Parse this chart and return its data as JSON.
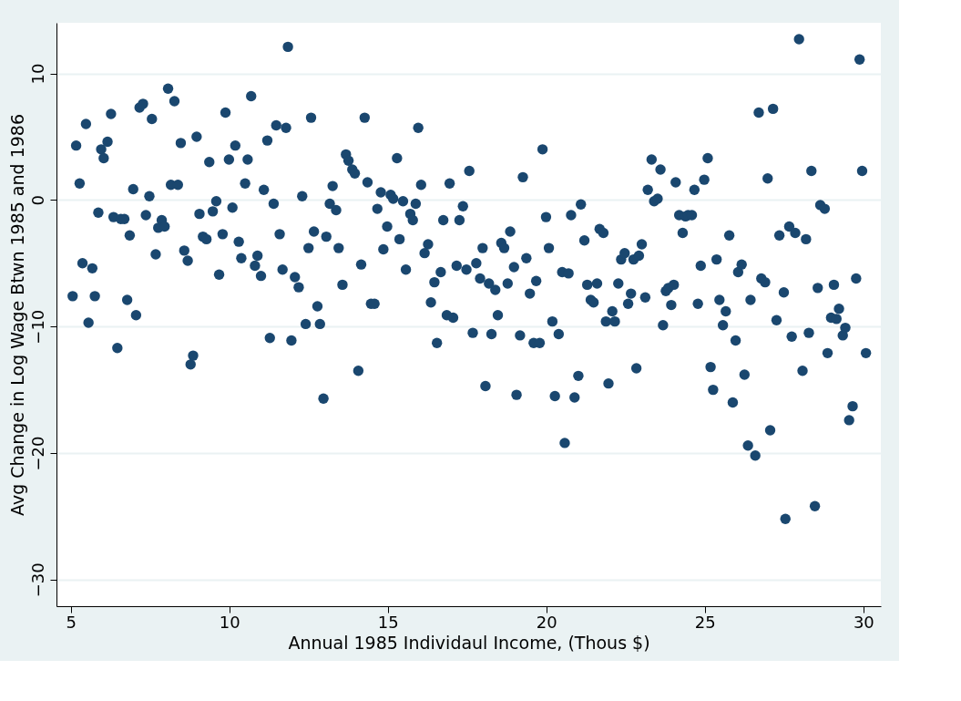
{
  "chart_data": {
    "type": "scatter",
    "xlabel": "Annual 1985 Individaul Income, (Thous $)",
    "ylabel": "Avg Change in Log Wage Btwn 1985 and 1986",
    "xlim": [
      4.55,
      30.55
    ],
    "ylim": [
      -32.1,
      14
    ],
    "xticks": [
      5,
      10,
      15,
      20,
      25,
      30
    ],
    "yticks": [
      -30,
      -20,
      -10,
      0,
      10
    ],
    "grid": "y",
    "marker": "circle",
    "series": [
      {
        "color": "#1a476f",
        "x": [
          5.06,
          5.17,
          5.28,
          5.37,
          5.48,
          5.56,
          5.68,
          5.76,
          5.87,
          5.96,
          6.04,
          6.16,
          6.27,
          6.35,
          6.47,
          6.58,
          6.69,
          6.78,
          6.86,
          6.97,
          7.06,
          7.17,
          7.28,
          7.37,
          7.48,
          7.56,
          7.68,
          7.76,
          7.87,
          7.96,
          8.07,
          8.16,
          8.27,
          8.38,
          8.47,
          8.58,
          8.69,
          8.78,
          8.86,
          8.97,
          9.06,
          9.17,
          9.28,
          9.37,
          9.48,
          9.59,
          9.68,
          9.79,
          9.88,
          9.99,
          10.1,
          10.19,
          10.3,
          10.38,
          10.5,
          10.58,
          10.69,
          10.81,
          10.89,
          11.0,
          11.09,
          11.2,
          11.28,
          11.4,
          11.48,
          11.59,
          11.68,
          11.79,
          11.85,
          11.96,
          12.07,
          12.19,
          12.3,
          12.41,
          12.5,
          12.58,
          12.67,
          12.78,
          12.86,
          12.97,
          13.06,
          13.17,
          13.26,
          13.37,
          13.45,
          13.57,
          13.68,
          13.76,
          13.88,
          13.96,
          14.07,
          14.16,
          14.27,
          14.36,
          14.47,
          14.58,
          14.67,
          14.78,
          14.86,
          14.98,
          15.09,
          15.17,
          15.29,
          15.37,
          15.48,
          15.57,
          15.71,
          15.79,
          15.88,
          15.96,
          16.05,
          16.16,
          16.27,
          16.36,
          16.47,
          16.55,
          16.67,
          16.75,
          16.86,
          16.95,
          17.06,
          17.17,
          17.26,
          17.37,
          17.48,
          17.57,
          17.68,
          17.79,
          17.91,
          17.99,
          18.08,
          18.19,
          18.27,
          18.39,
          18.47,
          18.58,
          18.67,
          18.78,
          18.86,
          18.98,
          19.06,
          19.17,
          19.26,
          19.37,
          19.48,
          19.6,
          19.68,
          19.79,
          19.88,
          19.99,
          20.08,
          20.19,
          20.27,
          20.39,
          20.5,
          20.58,
          20.7,
          20.78,
          20.89,
          21.01,
          21.09,
          21.2,
          21.29,
          21.4,
          21.49,
          21.6,
          21.68,
          21.8,
          21.88,
          21.96,
          22.08,
          22.16,
          22.27,
          22.36,
          22.47,
          22.58,
          22.67,
          22.75,
          22.84,
          22.92,
          23.01,
          23.12,
          23.2,
          23.32,
          23.4,
          23.51,
          23.6,
          23.68,
          23.77,
          23.85,
          23.94,
          24.02,
          24.08,
          24.19,
          24.3,
          24.39,
          24.47,
          24.59,
          24.67,
          24.78,
          24.87,
          24.98,
          25.09,
          25.18,
          25.26,
          25.37,
          25.46,
          25.57,
          25.66,
          25.77,
          25.88,
          25.97,
          26.05,
          26.16,
          26.25,
          26.36,
          26.44,
          26.59,
          26.7,
          26.78,
          26.9,
          26.98,
          27.06,
          27.15,
          27.26,
          27.35,
          27.49,
          27.54,
          27.66,
          27.74,
          27.85,
          27.97,
          28.08,
          28.19,
          28.28,
          28.36,
          28.47,
          28.56,
          28.64,
          28.78,
          28.87,
          28.98,
          29.07,
          29.15,
          29.23,
          29.35,
          29.43,
          29.55,
          29.66,
          29.77,
          29.88,
          29.96,
          30.08
        ],
        "values": [
          -7.6,
          4.3,
          1.3,
          -5.0,
          6.0,
          -9.7,
          -5.4,
          -7.6,
          -1.0,
          4.0,
          3.3,
          4.6,
          6.8,
          -1.35,
          -11.7,
          -1.5,
          -1.5,
          -7.9,
          -2.8,
          0.85,
          -9.1,
          7.3,
          7.6,
          -1.2,
          0.3,
          6.4,
          -4.3,
          -2.2,
          -1.6,
          -2.1,
          8.8,
          1.2,
          7.8,
          1.2,
          4.5,
          -4.0,
          -4.8,
          -13.0,
          -12.3,
          5.0,
          -1.1,
          -2.9,
          -3.1,
          3.0,
          -0.9,
          -0.1,
          -5.9,
          -2.7,
          6.9,
          3.2,
          -0.6,
          4.3,
          -3.3,
          -4.6,
          1.3,
          3.2,
          8.2,
          -5.2,
          -4.4,
          -6.0,
          0.8,
          4.7,
          -10.9,
          -0.3,
          5.9,
          -2.7,
          -5.5,
          5.7,
          12.1,
          -11.1,
          -6.1,
          -6.9,
          0.3,
          -9.8,
          -3.8,
          6.5,
          -2.5,
          -8.4,
          -9.8,
          -15.7,
          -2.9,
          -0.3,
          1.1,
          -0.8,
          -3.8,
          -6.7,
          3.6,
          3.1,
          2.4,
          2.1,
          -13.5,
          -5.1,
          6.5,
          1.4,
          -8.2,
          -8.2,
          -0.7,
          0.6,
          -3.9,
          -2.1,
          0.4,
          0.1,
          3.3,
          -3.1,
          -0.1,
          -5.5,
          -1.1,
          -1.6,
          -0.3,
          5.7,
          1.2,
          -4.2,
          -3.5,
          -8.1,
          -6.5,
          -11.3,
          -5.7,
          -1.6,
          -9.1,
          1.3,
          -9.3,
          -5.2,
          -1.6,
          -0.5,
          -5.5,
          2.3,
          -10.5,
          -5.0,
          -6.2,
          -3.8,
          -14.7,
          -6.6,
          -10.6,
          -7.1,
          -9.1,
          -3.4,
          -3.8,
          -6.6,
          -2.5,
          -5.3,
          -15.4,
          -10.7,
          1.8,
          -4.6,
          -7.4,
          -11.3,
          -6.4,
          -11.3,
          4.0,
          -1.35,
          -3.8,
          -9.6,
          -15.5,
          -10.6,
          -5.7,
          -19.2,
          -5.8,
          -1.2,
          -15.6,
          -13.9,
          -0.35,
          -3.2,
          -6.7,
          -7.9,
          -8.1,
          -6.6,
          -2.3,
          -2.6,
          -9.6,
          -14.5,
          -8.8,
          -9.6,
          -6.6,
          -4.7,
          -4.2,
          -8.2,
          -7.4,
          -4.7,
          -13.3,
          -4.4,
          -3.5,
          -7.7,
          0.8,
          3.2,
          -0.1,
          0.1,
          2.4,
          -9.9,
          -7.2,
          -6.95,
          -8.3,
          -6.7,
          1.4,
          -1.2,
          -2.6,
          -1.3,
          -1.2,
          -1.2,
          0.8,
          -8.2,
          -5.2,
          1.6,
          3.3,
          -13.2,
          -15.0,
          -4.7,
          -7.9,
          -9.9,
          -8.8,
          -2.8,
          -16.0,
          -11.1,
          -5.7,
          -5.1,
          -13.8,
          -19.4,
          -7.9,
          -20.2,
          6.9,
          -6.2,
          -6.5,
          1.7,
          -18.2,
          7.2,
          -9.5,
          -2.8,
          -7.3,
          -25.2,
          -2.1,
          -10.8,
          -2.6,
          12.7,
          -13.5,
          -3.1,
          -10.5,
          2.3,
          -24.2,
          -6.95,
          -0.4,
          -0.7,
          -12.1,
          -9.3,
          -6.7,
          -9.4,
          -8.6,
          -10.7,
          -10.1,
          -17.4,
          -16.3,
          -6.2,
          11.1,
          2.3,
          -12.1
        ]
      }
    ]
  }
}
